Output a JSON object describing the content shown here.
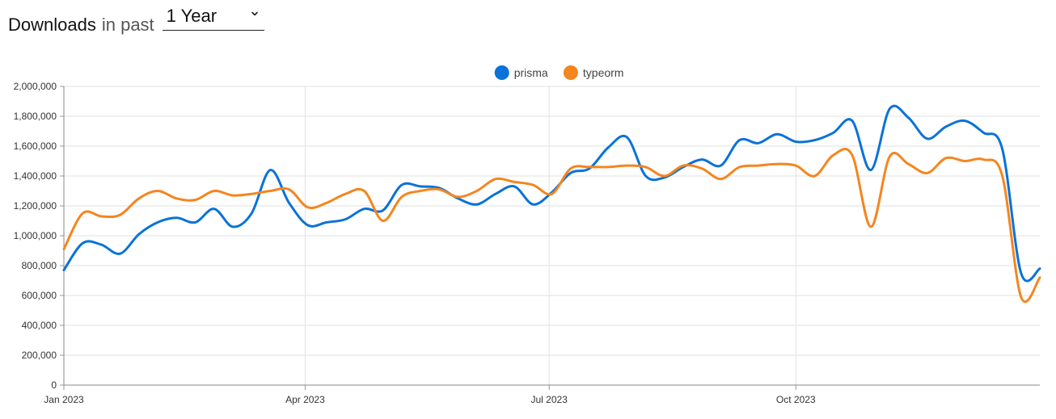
{
  "header": {
    "title": "Downloads",
    "subtitle": "in past",
    "period_select": {
      "selected": "1 Year"
    }
  },
  "chart_data": {
    "type": "line",
    "title": "",
    "xlabel": "",
    "ylabel": "",
    "ylim": [
      0,
      2000000
    ],
    "yticks": [
      "0",
      "200,000",
      "400,000",
      "600,000",
      "800,000",
      "1,000,000",
      "1,200,000",
      "1,400,000",
      "1,600,000",
      "1,800,000",
      "2,000,000"
    ],
    "xlim": [
      "2023-01-01",
      "2023-12-31"
    ],
    "xticks": [
      {
        "date": "2023-01-01",
        "label": "Jan 2023"
      },
      {
        "date": "2023-04-01",
        "label": "Apr 2023"
      },
      {
        "date": "2023-07-01",
        "label": "Jul 2023"
      },
      {
        "date": "2023-10-01",
        "label": "Oct 2023"
      }
    ],
    "grid": true,
    "legend": "top-center",
    "x": [
      "2023-01-01",
      "2023-01-08",
      "2023-01-15",
      "2023-01-22",
      "2023-01-29",
      "2023-02-05",
      "2023-02-12",
      "2023-02-19",
      "2023-02-26",
      "2023-03-05",
      "2023-03-12",
      "2023-03-19",
      "2023-03-26",
      "2023-04-02",
      "2023-04-09",
      "2023-04-16",
      "2023-04-23",
      "2023-04-30",
      "2023-05-07",
      "2023-05-14",
      "2023-05-21",
      "2023-05-28",
      "2023-06-04",
      "2023-06-11",
      "2023-06-18",
      "2023-06-25",
      "2023-07-02",
      "2023-07-09",
      "2023-07-16",
      "2023-07-23",
      "2023-07-30",
      "2023-08-06",
      "2023-08-13",
      "2023-08-20",
      "2023-08-27",
      "2023-09-03",
      "2023-09-10",
      "2023-09-17",
      "2023-09-24",
      "2023-10-01",
      "2023-10-08",
      "2023-10-15",
      "2023-10-22",
      "2023-10-29",
      "2023-11-05",
      "2023-11-12",
      "2023-11-19",
      "2023-11-26",
      "2023-12-03",
      "2023-12-10",
      "2023-12-17",
      "2023-12-24",
      "2023-12-31"
    ],
    "series": [
      {
        "name": "prisma",
        "color": "#0a72d8",
        "values": [
          770000,
          950000,
          940000,
          880000,
          1010000,
          1090000,
          1120000,
          1090000,
          1180000,
          1060000,
          1150000,
          1440000,
          1220000,
          1070000,
          1090000,
          1110000,
          1180000,
          1170000,
          1340000,
          1330000,
          1320000,
          1250000,
          1210000,
          1280000,
          1330000,
          1210000,
          1290000,
          1420000,
          1450000,
          1590000,
          1660000,
          1400000,
          1390000,
          1460000,
          1510000,
          1470000,
          1640000,
          1620000,
          1680000,
          1630000,
          1640000,
          1690000,
          1770000,
          1440000,
          1850000,
          1790000,
          1650000,
          1730000,
          1770000,
          1690000,
          1580000,
          750000,
          780000
        ]
      },
      {
        "name": "typeorm",
        "color": "#f5851f",
        "values": [
          910000,
          1150000,
          1130000,
          1140000,
          1250000,
          1300000,
          1250000,
          1240000,
          1300000,
          1270000,
          1280000,
          1300000,
          1310000,
          1190000,
          1220000,
          1280000,
          1300000,
          1100000,
          1260000,
          1300000,
          1310000,
          1260000,
          1300000,
          1380000,
          1360000,
          1340000,
          1280000,
          1450000,
          1460000,
          1460000,
          1470000,
          1460000,
          1400000,
          1470000,
          1450000,
          1380000,
          1460000,
          1470000,
          1480000,
          1470000,
          1400000,
          1540000,
          1540000,
          1060000,
          1530000,
          1480000,
          1420000,
          1520000,
          1500000,
          1510000,
          1400000,
          590000,
          720000
        ]
      }
    ]
  }
}
